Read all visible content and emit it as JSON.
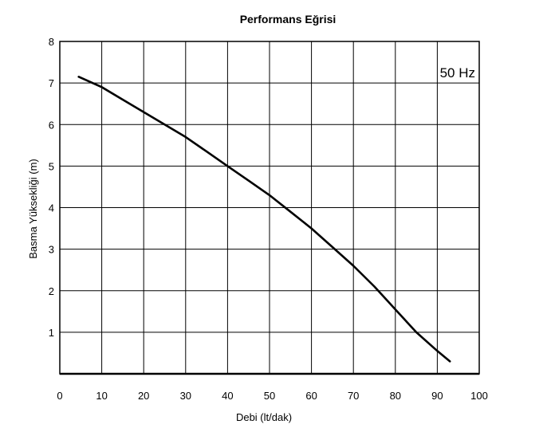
{
  "chart_data": {
    "type": "line",
    "title": "Performans Eğrisi",
    "xlabel": "Debi (lt/dak)",
    "ylabel": "Basma Yüksekliği (m)",
    "xlim": [
      0,
      100
    ],
    "ylim": [
      0,
      8
    ],
    "x_ticks": [
      "0",
      "10",
      "20",
      "30",
      "40",
      "50",
      "60",
      "70",
      "80",
      "90",
      "100"
    ],
    "y_ticks": [
      "1",
      "2",
      "3",
      "4",
      "5",
      "6",
      "7",
      "8"
    ],
    "grid": true,
    "annotation": "50 Hz",
    "series": [
      {
        "x": [
          4.5,
          10,
          15,
          20,
          25,
          30,
          35,
          40,
          45,
          50,
          55,
          60,
          65,
          70,
          75,
          80,
          85,
          90,
          93
        ],
        "y": [
          7.15,
          6.9,
          6.6,
          6.3,
          6.0,
          5.7,
          5.35,
          5.0,
          4.65,
          4.3,
          3.9,
          3.5,
          3.05,
          2.6,
          2.1,
          1.55,
          1.0,
          0.55,
          0.3
        ]
      }
    ]
  }
}
